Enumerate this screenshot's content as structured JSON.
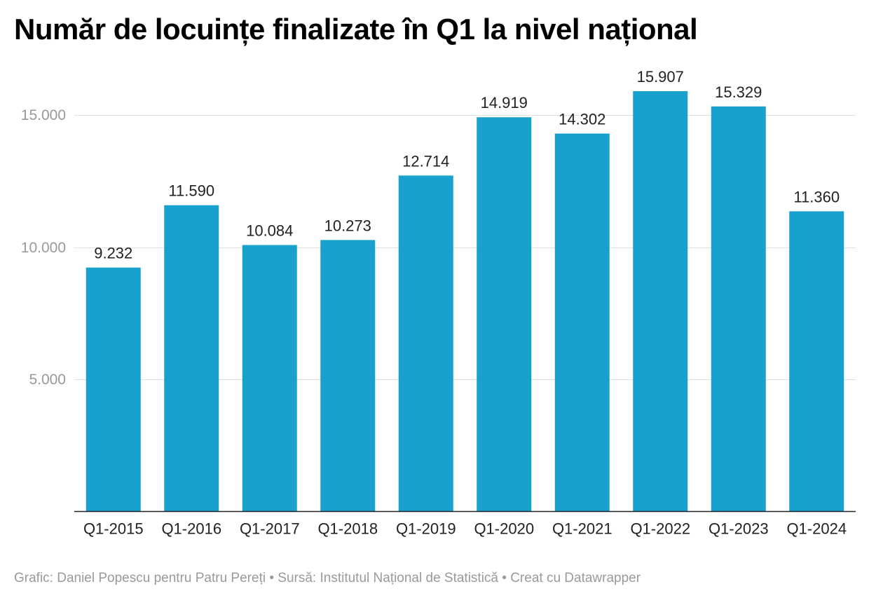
{
  "chart_data": {
    "type": "bar",
    "title": "Număr de locuințe finalizate în Q1 la nivel național",
    "categories": [
      "Q1-2015",
      "Q1-2016",
      "Q1-2017",
      "Q1-2018",
      "Q1-2019",
      "Q1-2020",
      "Q1-2021",
      "Q1-2022",
      "Q1-2023",
      "Q1-2024"
    ],
    "values": [
      9232,
      11590,
      10084,
      10273,
      12714,
      14919,
      14302,
      15907,
      15329,
      11360
    ],
    "value_labels": [
      "9.232",
      "11.590",
      "10.084",
      "10.273",
      "12.714",
      "14.919",
      "14.302",
      "15.907",
      "15.329",
      "11.360"
    ],
    "yticks": [
      5000,
      10000,
      15000
    ],
    "ytick_labels": [
      "5.000",
      "10.000",
      "15.000"
    ],
    "ylim": [
      0,
      15907
    ],
    "xlabel": "",
    "ylabel": "",
    "grid": true,
    "bar_color": "#18a1cd",
    "gridline_color": "#e0e0e0"
  },
  "footer": "Grafic: Daniel Popescu pentru Patru Pereți • Sursă: Institutul Național de Statistică • Creat cu Datawrapper"
}
